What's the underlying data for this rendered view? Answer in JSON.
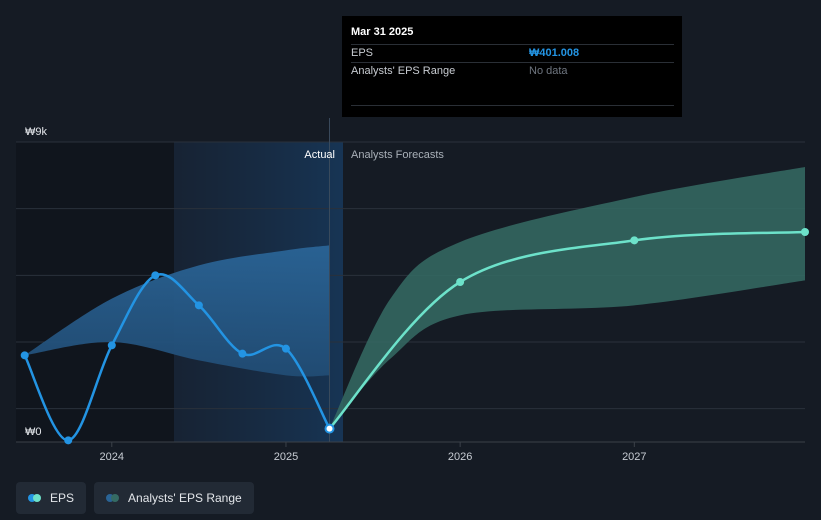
{
  "tooltip": {
    "date": "Mar 31 2025",
    "eps_label": "EPS",
    "eps_value": "₩401.008",
    "range_label": "Analysts' EPS Range",
    "range_value": "No data"
  },
  "regions": {
    "actual": "Actual",
    "forecast": "Analysts Forecasts"
  },
  "legend": {
    "eps": "EPS",
    "range": "Analysts' EPS Range"
  },
  "colors": {
    "eps_actual": "#2394e3",
    "eps_forecast": "#6de2ca",
    "range_past": "#2a6496",
    "range_future": "#356b64",
    "background": "#151b24"
  },
  "chart_data": {
    "type": "line",
    "title": "",
    "xlabel": "",
    "ylabel": "",
    "ylim": [
      0,
      9000
    ],
    "xlim": [
      2023.45,
      2027.98
    ],
    "y_tick_labels": [
      "₩0",
      "₩9k"
    ],
    "x_ticks": [
      2024,
      2025,
      2026,
      2027
    ],
    "x_tick_labels": [
      "2024",
      "2025",
      "2026",
      "2027"
    ],
    "grid": true,
    "divider_x": 2025.25,
    "series": [
      {
        "name": "EPS (actual)",
        "points": [
          [
            2023.5,
            2600
          ],
          [
            2023.75,
            50
          ],
          [
            2024.0,
            2900
          ],
          [
            2024.25,
            5000
          ],
          [
            2024.5,
            4100
          ],
          [
            2024.75,
            2650
          ],
          [
            2025.0,
            2800
          ],
          [
            2025.25,
            401.008
          ]
        ]
      },
      {
        "name": "EPS (forecast)",
        "points": [
          [
            2025.25,
            401.008
          ],
          [
            2026.0,
            4800
          ],
          [
            2027.0,
            6050
          ],
          [
            2028.0,
            6300
          ]
        ]
      }
    ],
    "range_past": {
      "name": "Analysts' EPS Range (past)",
      "upper": [
        [
          2023.5,
          2600
        ],
        [
          2024.0,
          4300
        ],
        [
          2024.5,
          5300
        ],
        [
          2025.0,
          5750
        ],
        [
          2025.25,
          5900
        ]
      ],
      "lower": [
        [
          2023.5,
          2600
        ],
        [
          2024.0,
          3000
        ],
        [
          2024.5,
          2450
        ],
        [
          2025.0,
          2000
        ],
        [
          2025.25,
          2000
        ]
      ]
    },
    "range_future": {
      "name": "Analysts' EPS Range (forecast)",
      "upper": [
        [
          2025.25,
          401.008
        ],
        [
          2025.6,
          4300
        ],
        [
          2026.0,
          6000
        ],
        [
          2027.0,
          7350
        ],
        [
          2028.0,
          8250
        ]
      ],
      "lower": [
        [
          2025.25,
          401.008
        ],
        [
          2025.6,
          2500
        ],
        [
          2026.0,
          3800
        ],
        [
          2027.0,
          4100
        ],
        [
          2028.0,
          4850
        ]
      ]
    }
  }
}
